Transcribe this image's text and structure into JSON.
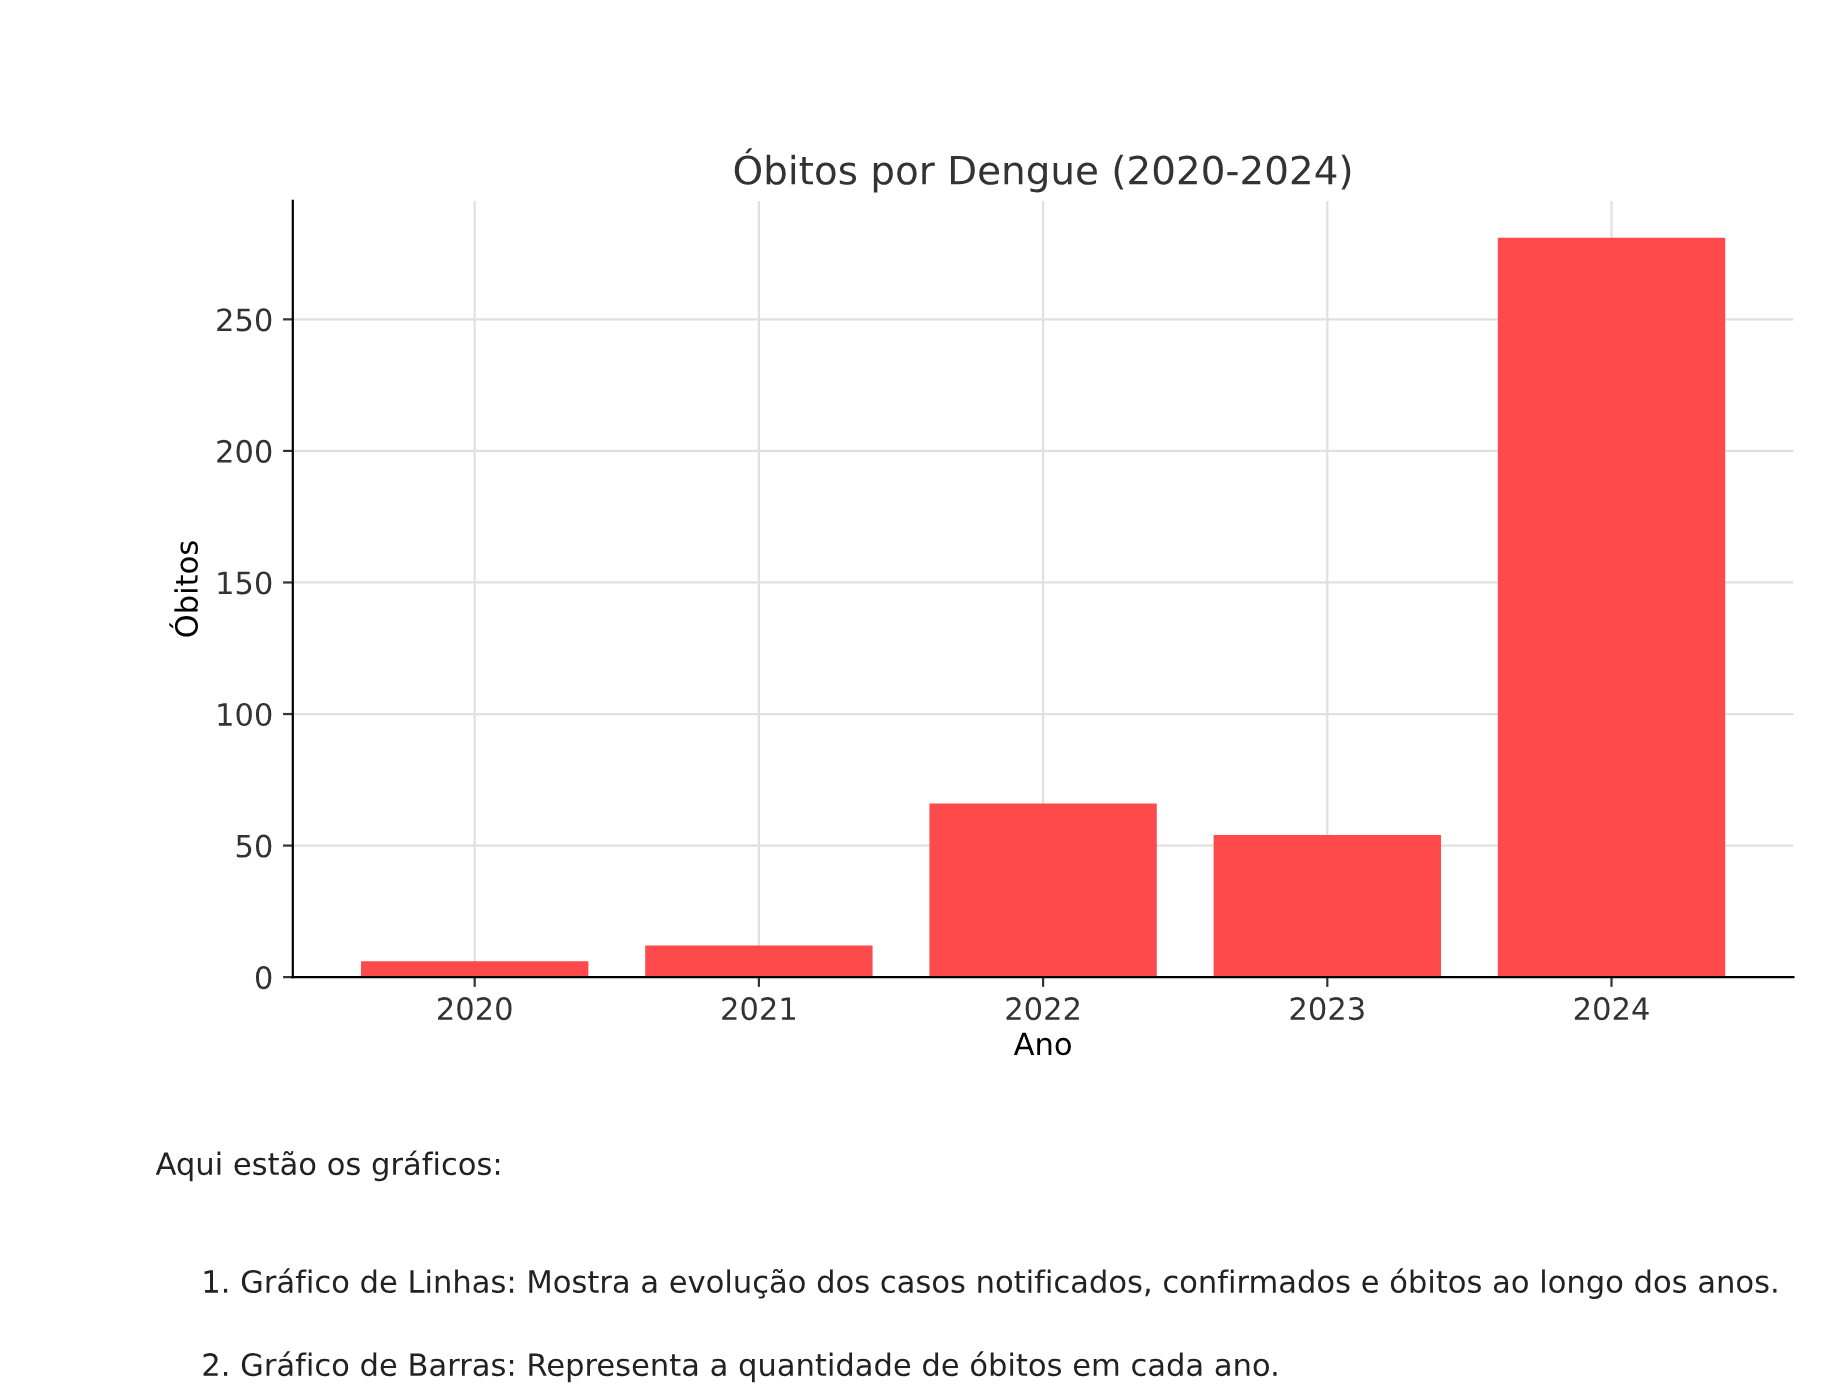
{
  "chart_data": {
    "type": "bar",
    "title": "Óbitos por Dengue (2020-2024)",
    "xlabel": "Ano",
    "ylabel": "Óbitos",
    "categories": [
      "2020",
      "2021",
      "2022",
      "2023",
      "2024"
    ],
    "values": [
      6,
      12,
      66,
      54,
      281
    ],
    "color": "#fe4a4a",
    "ylim": [
      0,
      295
    ],
    "yticks": [
      0,
      50,
      100,
      150,
      200,
      250
    ],
    "grid": true,
    "annotations": [
      "Aqui estão os gráficos:",
      "1. Gráfico de Linhas: Mostra a evolução dos casos notificados, confirmados e óbitos ao longo dos anos.",
      "2. Gráfico de Barras: Representa a quantidade de óbitos em cada ano."
    ]
  }
}
